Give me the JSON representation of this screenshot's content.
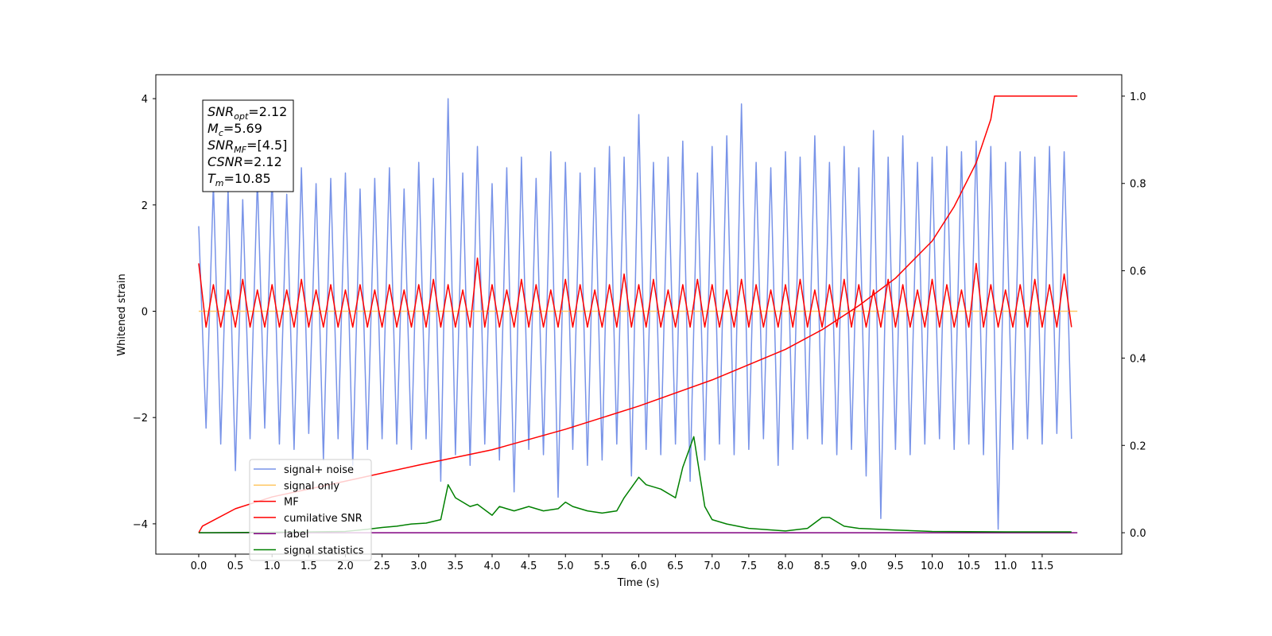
{
  "chart_data": {
    "type": "line",
    "xlabel": "Time (s)",
    "ylabel": "Whitened strain",
    "xlim": [
      -0.585,
      12.585
    ],
    "ylim": [
      -4.57,
      4.45
    ],
    "y2lim": [
      -0.049,
      1.049
    ],
    "xticks": [
      {
        "value": 0,
        "label": "0.0"
      },
      {
        "value": 0.5,
        "label": "0.5"
      },
      {
        "value": 1,
        "label": "1.0"
      },
      {
        "value": 1.5,
        "label": "1.5"
      },
      {
        "value": 2,
        "label": "2.0"
      },
      {
        "value": 2.5,
        "label": "2.5"
      },
      {
        "value": 3,
        "label": "3.0"
      },
      {
        "value": 3.5,
        "label": "3.5"
      },
      {
        "value": 4,
        "label": "4.0"
      },
      {
        "value": 4.5,
        "label": "4.5"
      },
      {
        "value": 5,
        "label": "5.0"
      },
      {
        "value": 5.5,
        "label": "5.5"
      },
      {
        "value": 6,
        "label": "6.0"
      },
      {
        "value": 6.5,
        "label": "6.5"
      },
      {
        "value": 7,
        "label": "7.0"
      },
      {
        "value": 7.5,
        "label": "7.5"
      },
      {
        "value": 8,
        "label": "8.0"
      },
      {
        "value": 8.5,
        "label": "8.5"
      },
      {
        "value": 9,
        "label": "9.0"
      },
      {
        "value": 9.5,
        "label": "9.5"
      },
      {
        "value": 10,
        "label": "10.0"
      },
      {
        "value": 10.5,
        "label": "10.5"
      },
      {
        "value": 11,
        "label": "11.0"
      },
      {
        "value": 11.5,
        "label": "11.5"
      }
    ],
    "yticks": [
      {
        "value": -4,
        "label": "−4"
      },
      {
        "value": -2,
        "label": "−2"
      },
      0,
      2,
      4
    ],
    "y2ticks": [
      {
        "value": 0,
        "label": "0.0"
      },
      {
        "value": 0.2,
        "label": "0.2"
      },
      {
        "value": 0.4,
        "label": "0.4"
      },
      {
        "value": 0.6,
        "label": "0.6"
      },
      {
        "value": 0.8,
        "label": "0.8"
      },
      {
        "value": 1,
        "label": "1.0"
      }
    ],
    "legend": "lower left",
    "grid": false,
    "annotations": [
      {
        "symbol": "SNR",
        "sub": "opt",
        "text": "=2.12"
      },
      {
        "symbol": "M",
        "sub": "c",
        "text": "=5.69"
      },
      {
        "symbol": "SNR",
        "sub": "MF",
        "text": "=[4.5]"
      },
      {
        "symbol": "CSNR",
        "text": "=2.12"
      },
      {
        "symbol": "T",
        "sub": "m",
        "text": "=10.85"
      }
    ],
    "x": [
      0,
      0.1,
      0.2,
      0.3,
      0.4,
      0.5,
      0.6,
      0.7,
      0.8,
      0.9,
      1,
      1.1,
      1.2,
      1.3,
      1.4,
      1.5,
      1.6,
      1.7,
      1.8,
      1.9,
      2,
      2.1,
      2.2,
      2.3,
      2.4,
      2.5,
      2.6,
      2.7,
      2.8,
      2.9,
      3,
      3.1,
      3.2,
      3.3,
      3.4,
      3.5,
      3.6,
      3.7,
      3.8,
      3.9,
      4,
      4.1,
      4.2,
      4.3,
      4.4,
      4.5,
      4.6,
      4.7,
      4.8,
      4.9,
      5,
      5.1,
      5.2,
      5.3,
      5.4,
      5.5,
      5.6,
      5.7,
      5.8,
      5.9,
      6,
      6.1,
      6.2,
      6.3,
      6.4,
      6.5,
      6.6,
      6.7,
      6.8,
      6.9,
      7,
      7.1,
      7.2,
      7.3,
      7.4,
      7.5,
      7.6,
      7.7,
      7.8,
      7.9,
      8,
      8.1,
      8.2,
      8.3,
      8.4,
      8.5,
      8.6,
      8.7,
      8.8,
      8.9,
      9,
      9.1,
      9.2,
      9.3,
      9.4,
      9.5,
      9.6,
      9.7,
      9.8,
      9.9,
      10,
      10.1,
      10.2,
      10.3,
      10.4,
      10.5,
      10.6,
      10.7,
      10.8,
      10.9,
      11,
      11.1,
      11.2,
      11.3,
      11.4,
      11.5,
      11.6,
      11.7,
      11.8,
      11.9
    ],
    "series": [
      {
        "name": "signal+ noise",
        "color": "#7893e8",
        "values": [
          1.6,
          -2.2,
          2.4,
          -2.5,
          2.3,
          -3.0,
          2.1,
          -2.4,
          2.5,
          -2.2,
          2.6,
          -2.5,
          2.2,
          -2.6,
          2.7,
          -2.3,
          2.4,
          -2.8,
          2.5,
          -2.4,
          2.6,
          -2.9,
          2.3,
          -2.6,
          2.5,
          -2.4,
          2.7,
          -2.5,
          2.3,
          -2.6,
          2.8,
          -2.4,
          2.5,
          -3.2,
          4.0,
          -2.7,
          2.6,
          -2.9,
          3.1,
          -2.5,
          2.4,
          -2.8,
          2.7,
          -3.4,
          2.9,
          -2.6,
          2.5,
          -2.7,
          3.0,
          -3.5,
          2.8,
          -2.6,
          2.6,
          -2.9,
          2.7,
          -2.8,
          3.1,
          -2.5,
          2.9,
          -3.1,
          3.7,
          -2.6,
          2.8,
          -2.7,
          2.9,
          -2.5,
          3.2,
          -3.2,
          2.6,
          -2.8,
          3.1,
          -2.5,
          3.3,
          -2.7,
          3.9,
          -2.6,
          2.8,
          -2.4,
          2.7,
          -2.9,
          3.0,
          -2.6,
          2.9,
          -2.4,
          3.3,
          -2.5,
          2.8,
          -2.7,
          3.1,
          -2.6,
          2.7,
          -3.1,
          3.4,
          -3.9,
          2.9,
          -2.6,
          3.3,
          -2.7,
          2.8,
          -2.5,
          2.9,
          -2.4,
          3.1,
          -2.6,
          3.0,
          -2.5,
          3.2,
          -2.7,
          3.1,
          -4.1,
          2.8,
          -2.6,
          3.0,
          -2.4,
          2.9,
          -2.5,
          3.1,
          -2.3,
          3.0,
          -2.4
        ]
      },
      {
        "name": "signal only",
        "color": "#ffc966",
        "x": [
          0,
          11.98
        ],
        "values": [
          0,
          0
        ]
      },
      {
        "name": "MF",
        "color": "#ff0000",
        "values": [
          0.9,
          -0.3,
          0.5,
          -0.3,
          0.4,
          -0.3,
          0.6,
          -0.3,
          0.4,
          -0.3,
          0.5,
          -0.3,
          0.4,
          -0.3,
          0.6,
          -0.3,
          0.4,
          -0.3,
          0.5,
          -0.3,
          0.4,
          -0.3,
          0.5,
          -0.3,
          0.4,
          -0.3,
          0.5,
          -0.3,
          0.4,
          -0.3,
          0.5,
          -0.3,
          0.6,
          -0.3,
          0.5,
          -0.3,
          0.4,
          -0.3,
          1.0,
          -0.3,
          0.5,
          -0.3,
          0.4,
          -0.3,
          0.6,
          -0.3,
          0.5,
          -0.3,
          0.4,
          -0.3,
          0.6,
          -0.3,
          0.5,
          -0.3,
          0.4,
          -0.3,
          0.5,
          -0.3,
          0.7,
          -0.3,
          0.5,
          -0.3,
          0.6,
          -0.3,
          0.4,
          -0.3,
          0.5,
          -0.3,
          0.6,
          -0.3,
          0.5,
          -0.3,
          0.4,
          -0.3,
          0.6,
          -0.3,
          0.5,
          -0.3,
          0.4,
          -0.3,
          0.5,
          -0.3,
          0.6,
          -0.3,
          0.4,
          -0.3,
          0.5,
          -0.3,
          0.6,
          -0.3,
          0.5,
          -0.3,
          0.4,
          -0.3,
          0.6,
          -0.3,
          0.5,
          -0.3,
          0.4,
          -0.3,
          0.6,
          -0.3,
          0.5,
          -0.3,
          0.4,
          -0.3,
          0.9,
          -0.3,
          0.5,
          -0.3,
          0.4,
          -0.3,
          0.5,
          -0.3,
          0.6,
          -0.3,
          0.5,
          -0.3,
          0.7,
          -0.3
        ]
      },
      {
        "name": "cumilative SNR",
        "color": "#ff0000",
        "axis": "y2",
        "x": [
          0,
          0.05,
          0.5,
          1,
          2,
          3,
          4,
          5,
          6,
          7,
          8,
          8.5,
          9,
          9.5,
          10,
          10.3,
          10.6,
          10.8,
          10.85,
          11.98
        ],
        "values": [
          0,
          0.015,
          0.055,
          0.082,
          0.118,
          0.155,
          0.19,
          0.237,
          0.29,
          0.35,
          0.42,
          0.465,
          0.52,
          0.583,
          0.668,
          0.747,
          0.847,
          0.947,
          1.0,
          1.0
        ]
      },
      {
        "name": "label",
        "color": "#800080",
        "axis": "y2",
        "x": [
          0,
          11.98
        ],
        "values": [
          0,
          0
        ]
      },
      {
        "name": "signal statistics",
        "color": "#008000",
        "axis": "y2",
        "x": [
          0,
          1,
          2,
          2.3,
          2.5,
          2.7,
          2.9,
          3.1,
          3.3,
          3.4,
          3.5,
          3.7,
          3.8,
          4.0,
          4.1,
          4.3,
          4.5,
          4.7,
          4.9,
          5.0,
          5.1,
          5.3,
          5.5,
          5.7,
          5.8,
          6.0,
          6.1,
          6.3,
          6.5,
          6.6,
          6.75,
          6.9,
          7.0,
          7.2,
          7.5,
          8.0,
          8.3,
          8.5,
          8.6,
          8.8,
          9.0,
          9.5,
          10.0,
          11.0,
          11.9
        ],
        "values": [
          0,
          0.001,
          0.003,
          0.008,
          0.012,
          0.015,
          0.02,
          0.022,
          0.03,
          0.11,
          0.08,
          0.06,
          0.065,
          0.04,
          0.06,
          0.05,
          0.06,
          0.05,
          0.055,
          0.07,
          0.06,
          0.05,
          0.045,
          0.05,
          0.08,
          0.127,
          0.11,
          0.1,
          0.08,
          0.15,
          0.22,
          0.06,
          0.03,
          0.02,
          0.01,
          0.004,
          0.01,
          0.035,
          0.035,
          0.015,
          0.01,
          0.006,
          0.003,
          0.002,
          0.002
        ]
      }
    ]
  }
}
